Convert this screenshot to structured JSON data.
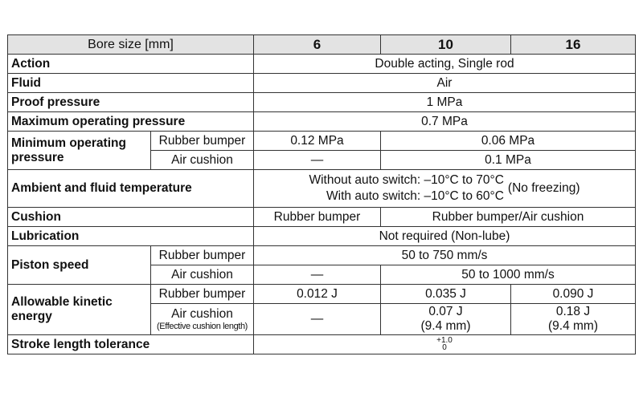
{
  "header": {
    "bore_size": "Bore size [mm]",
    "b6": "6",
    "b10": "10",
    "b16": "16"
  },
  "action": {
    "label": "Action",
    "value": "Double acting, Single rod"
  },
  "fluid": {
    "label": "Fluid",
    "value": "Air"
  },
  "proof": {
    "label": "Proof pressure",
    "value": "1 MPa"
  },
  "max_op": {
    "label": "Maximum operating pressure",
    "value": "0.7 MPa"
  },
  "min_op": {
    "label_line1": "Minimum operating",
    "label_line2": "pressure",
    "rubber_label": "Rubber bumper",
    "rubber_6": "0.12 MPa",
    "rubber_10_16": "0.06 MPa",
    "air_label": "Air cushion",
    "air_6": "—",
    "air_10_16": "0.1 MPa"
  },
  "ambient": {
    "label": "Ambient and fluid temperature",
    "line1": "Without auto switch: –10°C to 70°C",
    "line2": "With auto switch: –10°C to 60°C",
    "note": "(No freezing)"
  },
  "cushion": {
    "label": "Cushion",
    "v6": "Rubber bumper",
    "v10_16": "Rubber bumper/Air cushion"
  },
  "lubrication": {
    "label": "Lubrication",
    "value": "Not required (Non-lube)"
  },
  "piston": {
    "label": "Piston speed",
    "rubber_label": "Rubber bumper",
    "rubber_all": "50 to 750 mm/s",
    "air_label": "Air cushion",
    "air_6": "—",
    "air_10_16": "50 to 1000 mm/s"
  },
  "kinetic": {
    "label_line1": "Allowable kinetic",
    "label_line2": "energy",
    "rubber_label": "Rubber bumper",
    "rubber_6": "0.012 J",
    "rubber_10": "0.035 J",
    "rubber_16": "0.090 J",
    "air_label": "Air cushion",
    "air_sub": "(Effective cushion length)",
    "air_6": "—",
    "air_10_line1": "0.07 J",
    "air_10_line2": "(9.4 mm)",
    "air_16_line1": "0.18 J",
    "air_16_line2": "(9.4 mm)"
  },
  "stroke": {
    "label": "Stroke length tolerance",
    "tol_upper": "+1.0",
    "tol_lower": "0"
  }
}
